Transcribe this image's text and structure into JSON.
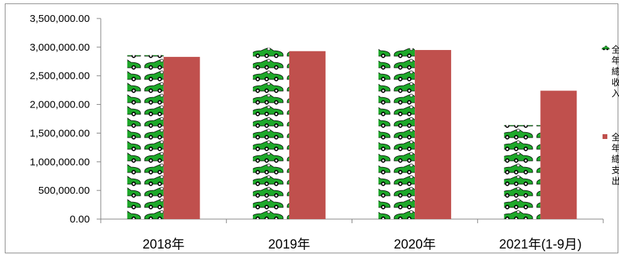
{
  "chart_data": {
    "type": "bar",
    "categories": [
      "2018年",
      "2019年",
      "2020年",
      "2021年(1-9月)"
    ],
    "series": [
      {
        "name": "全年總收入",
        "values": [
          2860000,
          2990000,
          2980000,
          1640000
        ],
        "fill": "car-pictogram",
        "color": "#1ea82a"
      },
      {
        "name": "全年總支出",
        "values": [
          2830000,
          2930000,
          2950000,
          2240000
        ],
        "color": "#c0504d"
      }
    ],
    "yticks": [
      "0.00",
      "500,000.00",
      "1,000,000.00",
      "1,500,000.00",
      "2,000,000.00",
      "2,500,000.00",
      "3,000,000.00",
      "3,500,000.00"
    ],
    "ylim": [
      0,
      3500000
    ],
    "legend_position": "right",
    "title": "",
    "xlabel": "",
    "ylabel": "",
    "grid": false
  }
}
